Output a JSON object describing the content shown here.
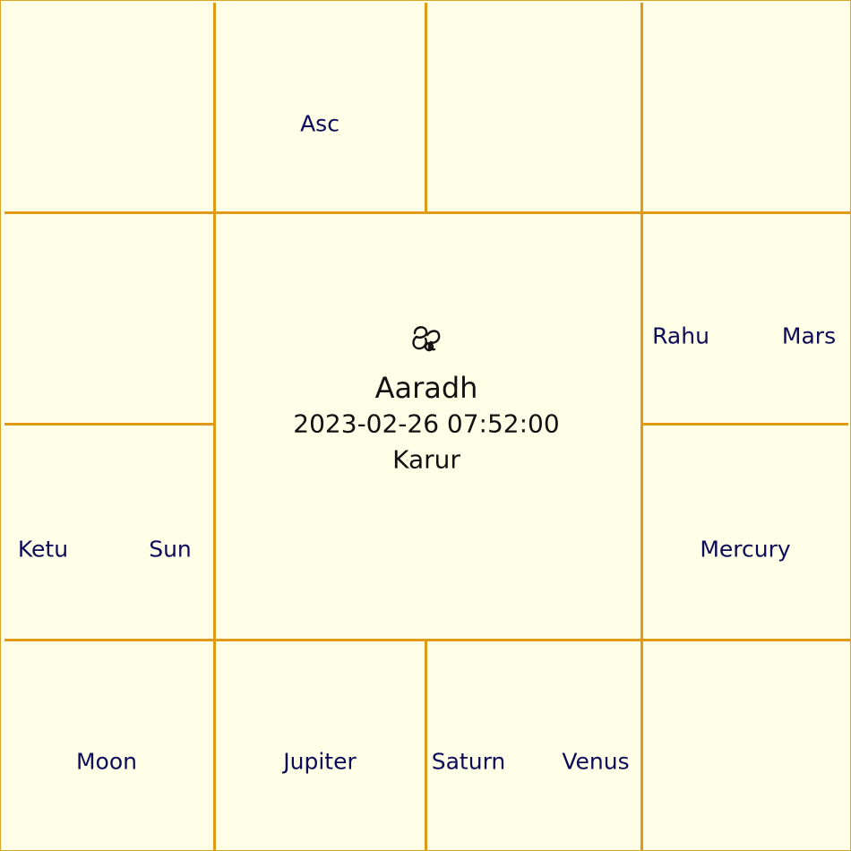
{
  "center": {
    "icon": "om-icon",
    "name": "Aaradh",
    "datetime": "2023-02-26 07:52:00",
    "place": "Karur"
  },
  "houses": {
    "top_2": [
      "Asc"
    ],
    "right_1": [
      "Rahu",
      "Mars"
    ],
    "right_2": [
      "Mercury"
    ],
    "bottom_2": [
      "Saturn",
      "Venus"
    ],
    "bottom_3": [
      "Jupiter"
    ],
    "bottom_4": [
      "Moon"
    ],
    "left_2": [
      "Ketu",
      "Sun"
    ]
  },
  "colors": {
    "background": "#fffee6",
    "grid_lines": "#e09a17",
    "planet_text": "#0b0b5a",
    "center_text": "#111111"
  }
}
